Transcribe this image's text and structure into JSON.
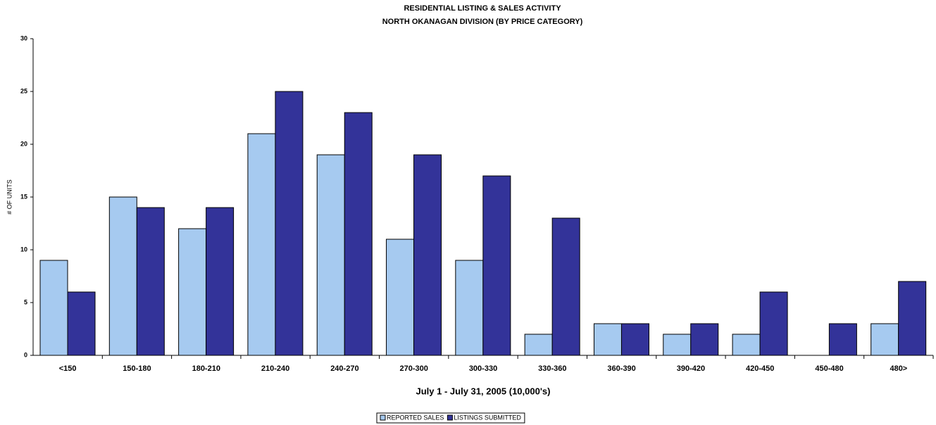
{
  "chart_data": {
    "type": "bar",
    "title": "RESIDENTIAL LISTING & SALES ACTIVITY",
    "subtitle": "NORTH OKANAGAN DIVISION (BY PRICE CATEGORY)",
    "x_label": "July 1 - July 31, 2005 (10,000's)",
    "y_label": "# OF UNITS",
    "categories": [
      "<150",
      "150-180",
      "180-210",
      "210-240",
      "240-270",
      "270-300",
      "300-330",
      "330-360",
      "360-390",
      "390-420",
      "420-450",
      "450-480",
      "480>"
    ],
    "series": [
      {
        "name": "REPORTED SALES",
        "color": "#a6caf0",
        "values": [
          9,
          15,
          12,
          21,
          19,
          11,
          9,
          2,
          3,
          2,
          2,
          0,
          3
        ]
      },
      {
        "name": "LISTINGS SUBMITTED",
        "color": "#333399",
        "values": [
          6,
          14,
          14,
          25,
          23,
          19,
          17,
          13,
          3,
          3,
          6,
          3,
          7
        ]
      }
    ],
    "ylim": [
      0,
      30
    ],
    "yticks": [
      0,
      5,
      10,
      15,
      20,
      25,
      30
    ],
    "grid": false,
    "legend": "bottom"
  }
}
